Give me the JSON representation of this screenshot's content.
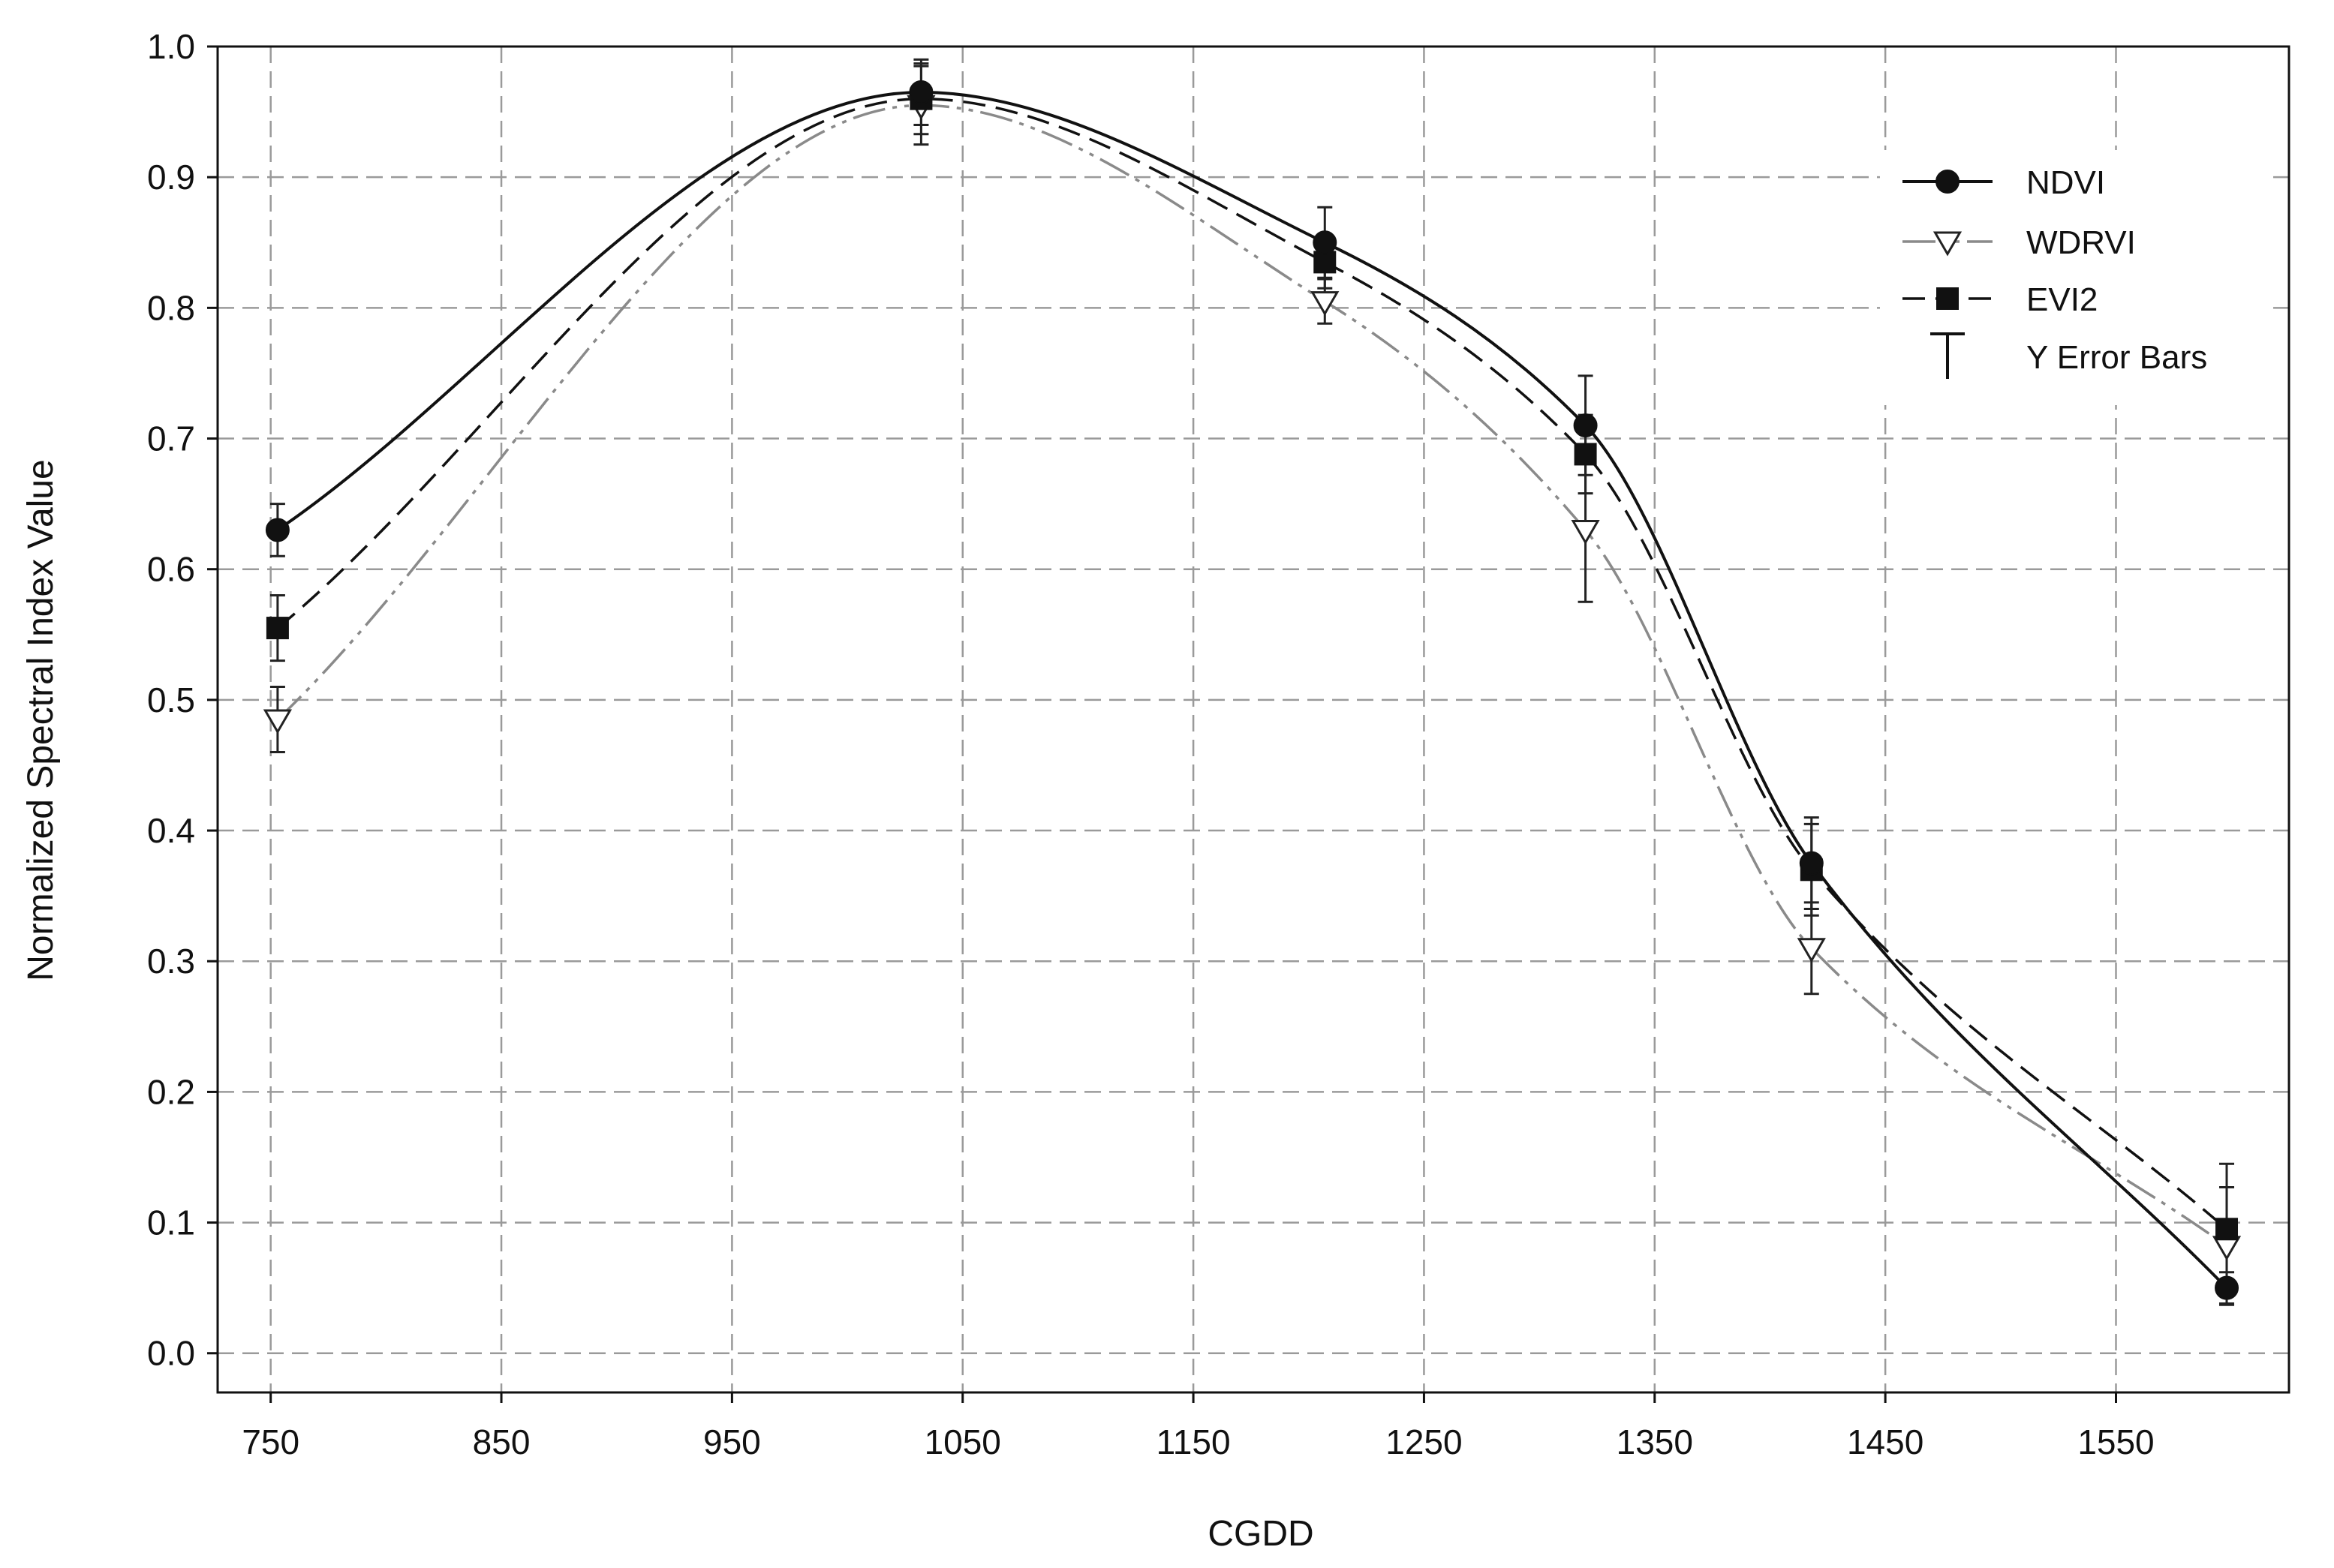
{
  "chart_data": {
    "type": "line",
    "xlabel": "CGDD",
    "ylabel": "Normalized Spectral Index Value",
    "xlim": [
      727,
      1625
    ],
    "ylim": [
      -0.03,
      1.0
    ],
    "xticks": [
      750,
      850,
      950,
      1050,
      1150,
      1250,
      1350,
      1450,
      1550
    ],
    "yticks": [
      0.0,
      0.1,
      0.2,
      0.3,
      0.4,
      0.5,
      0.6,
      0.7,
      0.8,
      0.9,
      1.0
    ],
    "ytick_labels": [
      "0.0",
      "0.1",
      "0.2",
      "0.3",
      "0.4",
      "0.5",
      "0.6",
      "0.7",
      "0.8",
      "0.9",
      "1.0"
    ],
    "grid": true,
    "legend_position": "top-right",
    "error_bar_label": "Y Error Bars",
    "x": [
      753,
      1032,
      1207,
      1320,
      1418,
      1598
    ],
    "series": [
      {
        "name": "NDVI",
        "marker": "circle-filled",
        "line_style": "solid",
        "color": "#111111",
        "values": [
          0.63,
          0.965,
          0.85,
          0.71,
          0.375,
          0.05
        ],
        "errors": [
          0.02,
          0.025,
          0.027,
          0.038,
          0.035,
          0.012
        ]
      },
      {
        "name": "WDRVI",
        "marker": "triangle-down-open",
        "line_style": "dash-dot-dot",
        "color": "#8a8a8a",
        "values": [
          0.485,
          0.955,
          0.805,
          0.63,
          0.31,
          0.082
        ],
        "errors": [
          0.025,
          0.03,
          0.017,
          0.055,
          0.035,
          0.045
        ]
      },
      {
        "name": "EVI2",
        "marker": "square-filled",
        "line_style": "dashed",
        "color": "#111111",
        "values": [
          0.555,
          0.96,
          0.835,
          0.688,
          0.37,
          0.095
        ],
        "errors": [
          0.025,
          0.027,
          0.02,
          0.03,
          0.035,
          0.05
        ]
      }
    ]
  }
}
